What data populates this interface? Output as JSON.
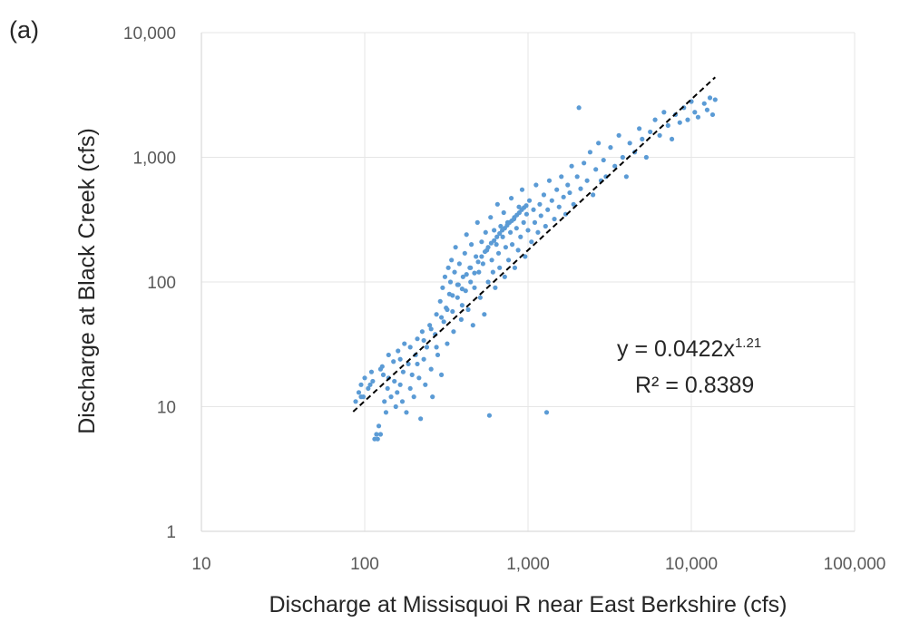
{
  "chart_data": {
    "type": "scatter",
    "panel_label": "(a)",
    "xlabel": "Discharge at Missisquoi R near East Berkshire (cfs)",
    "ylabel": "Discharge at Black Creek (cfs)",
    "xscale": "log",
    "yscale": "log",
    "xlim": [
      10,
      100000
    ],
    "ylim": [
      1,
      10000
    ],
    "x_ticks": [
      10,
      100,
      1000,
      10000,
      100000
    ],
    "x_tick_labels": [
      "10",
      "100",
      "1,000",
      "10,000",
      "100,000"
    ],
    "y_ticks": [
      1,
      10,
      100,
      1000,
      10000
    ],
    "y_tick_labels": [
      "1",
      "10",
      "100",
      "1,000",
      "10,000"
    ],
    "grid": true,
    "marker_color": "#5b9bd5",
    "trendline": {
      "type": "power",
      "a": 0.0422,
      "b": 1.21,
      "x_range": [
        85,
        14000
      ],
      "style": "dashed",
      "color": "#000000",
      "equation_main": "y = 0.0422x",
      "equation_exponent": "1.21",
      "r2_label": "R² = 0.8389"
    },
    "series": [
      {
        "points": [
          [
            88,
            11
          ],
          [
            92,
            13
          ],
          [
            95,
            15
          ],
          [
            98,
            12
          ],
          [
            100,
            17
          ],
          [
            105,
            14
          ],
          [
            110,
            19
          ],
          [
            112,
            16
          ],
          [
            115,
            5.5
          ],
          [
            118,
            6
          ],
          [
            120,
            5.5
          ],
          [
            122,
            7
          ],
          [
            125,
            6
          ],
          [
            128,
            21
          ],
          [
            130,
            18
          ],
          [
            132,
            11
          ],
          [
            135,
            9
          ],
          [
            138,
            14
          ],
          [
            140,
            26
          ],
          [
            145,
            12
          ],
          [
            150,
            23
          ],
          [
            152,
            16
          ],
          [
            155,
            10
          ],
          [
            158,
            13
          ],
          [
            160,
            28
          ],
          [
            165,
            15
          ],
          [
            170,
            11
          ],
          [
            172,
            19
          ],
          [
            175,
            32
          ],
          [
            180,
            9
          ],
          [
            185,
            22
          ],
          [
            190,
            14
          ],
          [
            195,
            18
          ],
          [
            200,
            12
          ],
          [
            205,
            26
          ],
          [
            210,
            35
          ],
          [
            215,
            17
          ],
          [
            220,
            8
          ],
          [
            225,
            40
          ],
          [
            230,
            24
          ],
          [
            235,
            15
          ],
          [
            240,
            30
          ],
          [
            250,
            45
          ],
          [
            255,
            20
          ],
          [
            260,
            12
          ],
          [
            270,
            38
          ],
          [
            275,
            55
          ],
          [
            280,
            26
          ],
          [
            290,
            70
          ],
          [
            295,
            18
          ],
          [
            300,
            90
          ],
          [
            305,
            48
          ],
          [
            310,
            110
          ],
          [
            315,
            62
          ],
          [
            320,
            32
          ],
          [
            325,
            130
          ],
          [
            330,
            80
          ],
          [
            335,
            100
          ],
          [
            340,
            150
          ],
          [
            345,
            58
          ],
          [
            350,
            40
          ],
          [
            355,
            120
          ],
          [
            360,
            190
          ],
          [
            370,
            75
          ],
          [
            375,
            95
          ],
          [
            380,
            140
          ],
          [
            390,
            50
          ],
          [
            395,
            65
          ],
          [
            400,
            110
          ],
          [
            410,
            170
          ],
          [
            415,
            85
          ],
          [
            420,
            240
          ],
          [
            430,
            60
          ],
          [
            440,
            130
          ],
          [
            445,
            100
          ],
          [
            450,
            200
          ],
          [
            460,
            45
          ],
          [
            470,
            90
          ],
          [
            480,
            160
          ],
          [
            490,
            300
          ],
          [
            500,
            120
          ],
          [
            510,
            75
          ],
          [
            520,
            210
          ],
          [
            530,
            140
          ],
          [
            540,
            55
          ],
          [
            550,
            250
          ],
          [
            560,
            180
          ],
          [
            570,
            100
          ],
          [
            580,
            8.5
          ],
          [
            590,
            330
          ],
          [
            600,
            150
          ],
          [
            610,
            120
          ],
          [
            620,
            260
          ],
          [
            630,
            90
          ],
          [
            640,
            200
          ],
          [
            650,
            420
          ],
          [
            660,
            170
          ],
          [
            670,
            130
          ],
          [
            680,
            280
          ],
          [
            700,
            230
          ],
          [
            710,
            360
          ],
          [
            720,
            110
          ],
          [
            730,
            190
          ],
          [
            750,
            300
          ],
          [
            760,
            150
          ],
          [
            780,
            250
          ],
          [
            790,
            470
          ],
          [
            800,
            200
          ],
          [
            820,
            320
          ],
          [
            830,
            130
          ],
          [
            850,
            270
          ],
          [
            870,
            180
          ],
          [
            880,
            400
          ],
          [
            900,
            230
          ],
          [
            920,
            550
          ],
          [
            940,
            300
          ],
          [
            960,
            160
          ],
          [
            980,
            350
          ],
          [
            1000,
            260
          ],
          [
            1020,
            450
          ],
          [
            1050,
            210
          ],
          [
            1080,
            380
          ],
          [
            1100,
            300
          ],
          [
            1120,
            600
          ],
          [
            1150,
            250
          ],
          [
            1180,
            420
          ],
          [
            1200,
            340
          ],
          [
            1250,
            500
          ],
          [
            1280,
            280
          ],
          [
            1300,
            9
          ],
          [
            1320,
            380
          ],
          [
            1350,
            650
          ],
          [
            1400,
            450
          ],
          [
            1450,
            320
          ],
          [
            1500,
            550
          ],
          [
            1550,
            400
          ],
          [
            1600,
            700
          ],
          [
            1650,
            480
          ],
          [
            1700,
            350
          ],
          [
            1750,
            600
          ],
          [
            1800,
            520
          ],
          [
            1850,
            850
          ],
          [
            1900,
            420
          ],
          [
            2000,
            700
          ],
          [
            2050,
            2500
          ],
          [
            2100,
            560
          ],
          [
            2200,
            900
          ],
          [
            2300,
            650
          ],
          [
            2400,
            1100
          ],
          [
            2500,
            500
          ],
          [
            2600,
            800
          ],
          [
            2700,
            1300
          ],
          [
            2800,
            650
          ],
          [
            2900,
            950
          ],
          [
            3000,
            700
          ],
          [
            3200,
            1200
          ],
          [
            3400,
            850
          ],
          [
            3600,
            1500
          ],
          [
            3800,
            1000
          ],
          [
            4000,
            700
          ],
          [
            4200,
            1300
          ],
          [
            4500,
            1100
          ],
          [
            4800,
            1700
          ],
          [
            5000,
            1400
          ],
          [
            5300,
            1000
          ],
          [
            5600,
            1600
          ],
          [
            6000,
            2000
          ],
          [
            6400,
            1500
          ],
          [
            6800,
            2300
          ],
          [
            7200,
            1800
          ],
          [
            7600,
            1400
          ],
          [
            8000,
            2200
          ],
          [
            8500,
            1900
          ],
          [
            9000,
            2500
          ],
          [
            9500,
            2000
          ],
          [
            10000,
            2800
          ],
          [
            10500,
            2300
          ],
          [
            11000,
            2100
          ],
          [
            12000,
            2700
          ],
          [
            12500,
            2400
          ],
          [
            13000,
            3000
          ],
          [
            13500,
            2200
          ],
          [
            14000,
            2900
          ],
          [
            95,
            12
          ],
          [
            108,
            15
          ],
          [
            125,
            20
          ],
          [
            140,
            17
          ],
          [
            165,
            24
          ],
          [
            190,
            30
          ],
          [
            210,
            22
          ],
          [
            230,
            34
          ],
          [
            255,
            42
          ],
          [
            275,
            30
          ],
          [
            295,
            52
          ],
          [
            320,
            60
          ],
          [
            345,
            78
          ],
          [
            370,
            95
          ],
          [
            395,
            88
          ],
          [
            420,
            115
          ],
          [
            445,
            130
          ],
          [
            470,
            118
          ],
          [
            495,
            145
          ],
          [
            520,
            160
          ],
          [
            545,
            175
          ],
          [
            570,
            190
          ],
          [
            595,
            205
          ],
          [
            620,
            215
          ],
          [
            645,
            230
          ],
          [
            670,
            245
          ],
          [
            695,
            260
          ],
          [
            720,
            270
          ],
          [
            745,
            285
          ],
          [
            770,
            300
          ],
          [
            795,
            310
          ],
          [
            825,
            330
          ],
          [
            855,
            345
          ],
          [
            885,
            360
          ],
          [
            915,
            380
          ],
          [
            945,
            395
          ],
          [
            975,
            410
          ]
        ]
      }
    ]
  }
}
